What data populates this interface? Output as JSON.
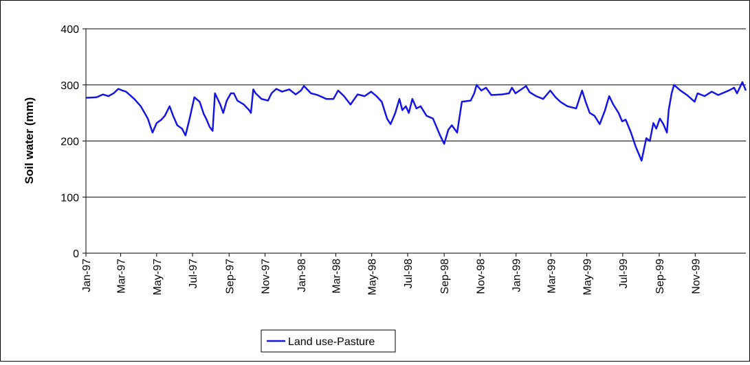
{
  "chart_data": {
    "type": "line",
    "y_label": "Soil water (mm)",
    "x": [
      0,
      18,
      29,
      38,
      47,
      55,
      62,
      68,
      82,
      93,
      105,
      113,
      120,
      128,
      134,
      142,
      148,
      155,
      163,
      169,
      176,
      184,
      193,
      200,
      204,
      210,
      215,
      219,
      228,
      233,
      239,
      246,
      251,
      257,
      268,
      277,
      280,
      284,
      288,
      298,
      309,
      315,
      323,
      333,
      345,
      356,
      365,
      370,
      382,
      393,
      408,
      420,
      428,
      438,
      449,
      461,
      473,
      484,
      493,
      502,
      511,
      517,
      525,
      532,
      537,
      543,
      548,
      554,
      561,
      568,
      578,
      589,
      595,
      601,
      608,
      615,
      621,
      630,
      638,
      653,
      659,
      663,
      671,
      679,
      688,
      706,
      718,
      723,
      729,
      747,
      753,
      764,
      776,
      788,
      797,
      805,
      817,
      832,
      842,
      848,
      855,
      863,
      872,
      881,
      888,
      895,
      904,
      910,
      916,
      925,
      933,
      943,
      951,
      957,
      963,
      968,
      974,
      980,
      986,
      989,
      994,
      998,
      1009,
      1020,
      1033,
      1038,
      1050,
      1062,
      1073,
      1091,
      1100,
      1105,
      1114,
      1120
    ],
    "series": [
      {
        "name": "Land use-Pasture",
        "color": "#1414e6",
        "values": [
          277,
          278,
          283,
          280,
          285,
          293,
          290,
          288,
          275,
          262,
          240,
          215,
          232,
          238,
          245,
          262,
          245,
          228,
          222,
          210,
          240,
          278,
          270,
          248,
          240,
          225,
          218,
          285,
          265,
          250,
          272,
          285,
          285,
          272,
          265,
          255,
          250,
          292,
          285,
          275,
          272,
          285,
          293,
          288,
          292,
          283,
          290,
          298,
          285,
          282,
          275,
          275,
          290,
          280,
          265,
          283,
          280,
          288,
          280,
          270,
          240,
          230,
          250,
          275,
          255,
          262,
          250,
          275,
          258,
          262,
          245,
          240,
          225,
          210,
          195,
          220,
          228,
          215,
          270,
          272,
          285,
          300,
          290,
          295,
          282,
          283,
          285,
          295,
          285,
          298,
          287,
          280,
          275,
          290,
          278,
          270,
          262,
          258,
          290,
          270,
          250,
          245,
          230,
          255,
          280,
          265,
          250,
          235,
          238,
          215,
          190,
          165,
          205,
          200,
          232,
          222,
          240,
          230,
          215,
          255,
          285,
          300,
          290,
          282,
          270,
          285,
          280,
          288,
          282,
          290,
          295,
          285,
          305,
          290
        ]
      }
    ],
    "xlim": [
      0,
      1120
    ],
    "xticks": [
      {
        "value": 0,
        "label": "Jan-97"
      },
      {
        "value": 59,
        "label": "Mar-97"
      },
      {
        "value": 120,
        "label": "May-97"
      },
      {
        "value": 181,
        "label": "Jul-97"
      },
      {
        "value": 243,
        "label": "Sep-97"
      },
      {
        "value": 304,
        "label": "Nov-97"
      },
      {
        "value": 365,
        "label": "Jan-98"
      },
      {
        "value": 424,
        "label": "Mar-98"
      },
      {
        "value": 485,
        "label": "May-98"
      },
      {
        "value": 546,
        "label": "Jul-98"
      },
      {
        "value": 608,
        "label": "Sep-98"
      },
      {
        "value": 669,
        "label": "Nov-98"
      },
      {
        "value": 730,
        "label": "Jan-99"
      },
      {
        "value": 789,
        "label": "Mar-99"
      },
      {
        "value": 850,
        "label": "May-99"
      },
      {
        "value": 911,
        "label": "Jul-99"
      },
      {
        "value": 973,
        "label": "Sep-99"
      },
      {
        "value": 1034,
        "label": "Nov-99"
      }
    ],
    "ylim": [
      0,
      400
    ],
    "yticks": [
      0,
      100,
      200,
      300,
      400
    ],
    "grid": true,
    "legend": "bottom"
  }
}
